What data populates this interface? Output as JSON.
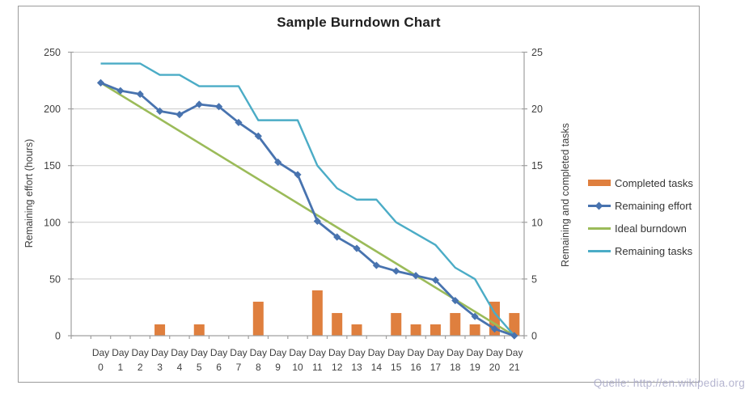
{
  "source_note": "Quelle: http://en.wikipedia.org",
  "colors": {
    "gridline": "#c9c9c9",
    "axis": "#a0a0a0",
    "tick_text": "#3f3f3f",
    "title_text": "#1f1f1f",
    "bar_orange": "#df7f3e",
    "effort_blue": "#4873af",
    "ideal_green": "#9bbb59",
    "tasks_teal": "#4bacc6"
  },
  "chart_data": {
    "type": "combo-bar-line",
    "title": "Sample Burndown Chart",
    "categories": [
      "Day 0",
      "Day 1",
      "Day 2",
      "Day 3",
      "Day 4",
      "Day 5",
      "Day 6",
      "Day 7",
      "Day 8",
      "Day 9",
      "Day 10",
      "Day 11",
      "Day 12",
      "Day 13",
      "Day 14",
      "Day 15",
      "Day 16",
      "Day 17",
      "Day 18",
      "Day 19",
      "Day 20",
      "Day 21"
    ],
    "left_axis": {
      "label": "Remaining effort (hours)",
      "min": 0,
      "max": 250,
      "ticks": [
        0,
        50,
        100,
        150,
        200,
        250
      ]
    },
    "right_axis": {
      "label": "Remaining and  completed tasks",
      "min": 0,
      "max": 25,
      "ticks": [
        0,
        5,
        10,
        15,
        20,
        25
      ]
    },
    "grid": true,
    "legend_position": "right",
    "series": [
      {
        "name": "Completed tasks",
        "type": "bar",
        "axis": "right",
        "color": "#df7f3e",
        "values": [
          0,
          0,
          0,
          1,
          0,
          1,
          0,
          0,
          3,
          0,
          0,
          4,
          2,
          1,
          0,
          2,
          1,
          1,
          2,
          1,
          3,
          2
        ]
      },
      {
        "name": "Remaining effort",
        "type": "line",
        "marker": "diamond",
        "axis": "left",
        "color": "#4873af",
        "values": [
          223,
          216,
          213,
          198,
          195,
          204,
          202,
          188,
          176,
          153,
          142,
          101,
          87,
          77,
          62,
          57,
          53,
          49,
          31,
          17,
          6,
          0
        ]
      },
      {
        "name": "Ideal burndown",
        "type": "line",
        "axis": "left",
        "color": "#9bbb59",
        "start_value": 223,
        "end_value": 0
      },
      {
        "name": "Remaining tasks",
        "type": "line",
        "axis": "right",
        "color": "#4bacc6",
        "values": [
          24,
          24,
          24,
          23,
          23,
          22,
          22,
          22,
          19,
          19,
          19,
          15,
          13,
          12,
          12,
          10,
          9,
          8,
          6,
          5,
          2,
          0
        ]
      }
    ]
  }
}
